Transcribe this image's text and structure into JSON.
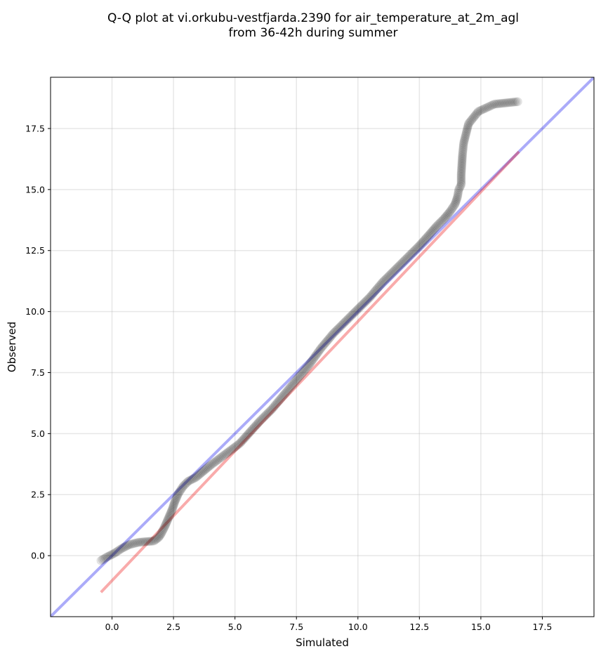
{
  "chart_data": {
    "type": "scatter",
    "title": "Q-Q plot at vi.orkubu-vestfjarda.2390 for air_temperature_at_2m_agl",
    "subtitle": "from 36-42h during summer",
    "xlabel": "Simulated",
    "ylabel": "Observed",
    "xlim": [
      -2.5,
      19.6
    ],
    "ylim": [
      -2.5,
      19.6
    ],
    "xticks": [
      0.0,
      2.5,
      5.0,
      7.5,
      10.0,
      12.5,
      15.0,
      17.5
    ],
    "yticks": [
      0.0,
      2.5,
      5.0,
      7.5,
      10.0,
      12.5,
      15.0,
      17.5
    ],
    "xtick_labels": [
      "0.0",
      "2.5",
      "5.0",
      "7.5",
      "10.0",
      "12.5",
      "15.0",
      "17.5"
    ],
    "ytick_labels": [
      "0.0",
      "2.5",
      "5.0",
      "7.5",
      "10.0",
      "12.5",
      "15.0",
      "17.5"
    ],
    "grid": true,
    "reference_lines": [
      {
        "kind": "identity",
        "color": "#0000ee",
        "x": [
          -2.5,
          19.6
        ],
        "y": [
          -2.5,
          19.6
        ]
      },
      {
        "kind": "fit",
        "color": "#ee0000",
        "x": [
          -0.45,
          16.55
        ],
        "y": [
          -1.5,
          16.55
        ]
      }
    ],
    "quantile_curve": {
      "x": [
        -0.45,
        -0.2,
        0.1,
        0.4,
        0.7,
        1.1,
        1.7,
        1.9,
        2.0,
        2.15,
        2.3,
        2.45,
        2.55,
        2.7,
        2.9,
        3.1,
        3.4,
        3.7,
        4.0,
        4.4,
        4.8,
        5.2,
        5.6,
        6.0,
        6.5,
        7.0,
        7.5,
        8.0,
        8.5,
        9.0,
        9.5,
        10.0,
        10.5,
        11.0,
        11.5,
        12.0,
        12.5,
        12.9,
        13.2,
        13.5,
        13.75,
        13.95,
        14.05,
        14.1,
        14.2,
        14.2,
        14.25,
        14.3,
        14.5,
        14.9,
        15.55,
        16.5
      ],
      "y": [
        -0.2,
        -0.05,
        0.1,
        0.3,
        0.45,
        0.55,
        0.6,
        0.75,
        0.9,
        1.2,
        1.55,
        1.9,
        2.2,
        2.55,
        2.85,
        3.05,
        3.2,
        3.45,
        3.7,
        4.0,
        4.3,
        4.6,
        5.05,
        5.5,
        6.0,
        6.6,
        7.2,
        7.8,
        8.5,
        9.1,
        9.6,
        10.1,
        10.6,
        11.2,
        11.7,
        12.2,
        12.7,
        13.15,
        13.5,
        13.8,
        14.1,
        14.4,
        14.7,
        15.0,
        15.2,
        15.6,
        16.4,
        16.9,
        17.7,
        18.2,
        18.5,
        18.6
      ]
    },
    "point_color": "#000000"
  }
}
